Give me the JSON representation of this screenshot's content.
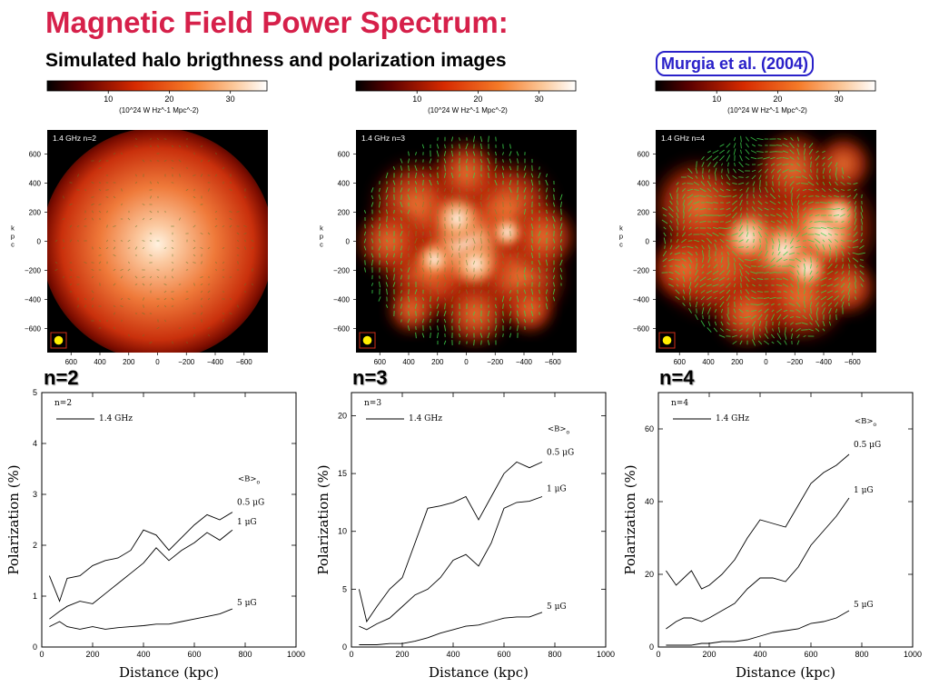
{
  "header": {
    "title": "Magnetic Field Power Spectrum:",
    "subtitle": "Simulated halo brigthness and polarization images",
    "citation": "Murgia et al. (2004)"
  },
  "colors": {
    "title": "#d6204a",
    "citation": "#2a21c9",
    "vectors": "#3bd04a"
  },
  "colorbar": {
    "ticks": [
      "10",
      "20",
      "30"
    ],
    "tick_values": [
      10,
      20,
      30
    ],
    "range": [
      0,
      36
    ],
    "unit": "(10^24 W Hz^-1 Mpc^-2)"
  },
  "images": [
    {
      "caption": "1.4 GHz   n=2",
      "label": "n=2"
    },
    {
      "caption": "1.4 GHz   n=3",
      "label": "n=3"
    },
    {
      "caption": "1.4 GHz   n=4",
      "label": "n=4"
    }
  ],
  "image_axes": {
    "ylabel": "k p c",
    "y_ticks": [
      "600",
      "400",
      "200",
      "0",
      "−200",
      "−400",
      "−600"
    ],
    "y_values": [
      600,
      400,
      200,
      0,
      -200,
      -400,
      -600
    ],
    "x_ticks": [
      "600",
      "400",
      "200",
      "0",
      "−200",
      "−400",
      "−600"
    ],
    "x_values": [
      600,
      400,
      200,
      0,
      -200,
      -400,
      -600
    ],
    "range": [
      -750,
      750
    ]
  },
  "chart_data": [
    {
      "type": "line",
      "panel": "n=2",
      "legend": "1.4 GHz",
      "legend_header": "<B>",
      "xlabel": "Distance (kpc)",
      "ylabel": "Polarization (%)",
      "xlim": [
        0,
        1000
      ],
      "ylim": [
        0,
        5
      ],
      "x_ticks": [
        0,
        200,
        400,
        600,
        800,
        1000
      ],
      "y_ticks": [
        0,
        1,
        2,
        3,
        4,
        5
      ],
      "series": [
        {
          "name": "0.5 μG",
          "x": [
            30,
            70,
            100,
            150,
            200,
            250,
            300,
            350,
            400,
            450,
            500,
            550,
            600,
            650,
            700,
            750
          ],
          "values": [
            1.4,
            0.9,
            1.35,
            1.4,
            1.6,
            1.7,
            1.75,
            1.9,
            2.3,
            2.2,
            1.9,
            2.15,
            2.4,
            2.6,
            2.5,
            2.65
          ]
        },
        {
          "name": "1 μG",
          "x": [
            30,
            70,
            100,
            150,
            200,
            250,
            300,
            350,
            400,
            450,
            500,
            550,
            600,
            650,
            700,
            750
          ],
          "values": [
            0.55,
            0.7,
            0.8,
            0.9,
            0.85,
            1.05,
            1.25,
            1.45,
            1.65,
            1.95,
            1.7,
            1.9,
            2.05,
            2.25,
            2.1,
            2.3
          ]
        },
        {
          "name": "5 μG",
          "x": [
            30,
            70,
            100,
            150,
            200,
            250,
            300,
            350,
            400,
            450,
            500,
            550,
            600,
            650,
            700,
            750
          ],
          "values": [
            0.4,
            0.5,
            0.4,
            0.35,
            0.4,
            0.35,
            0.38,
            0.4,
            0.42,
            0.45,
            0.45,
            0.5,
            0.55,
            0.6,
            0.65,
            0.75
          ]
        }
      ]
    },
    {
      "type": "line",
      "panel": "n=3",
      "legend": "1.4 GHz",
      "legend_header": "<B>",
      "xlabel": "Distance (kpc)",
      "ylabel": "Polarization (%)",
      "xlim": [
        0,
        1000
      ],
      "ylim": [
        0,
        22
      ],
      "x_ticks": [
        0,
        200,
        400,
        600,
        800,
        1000
      ],
      "y_ticks": [
        0,
        5,
        10,
        15,
        20
      ],
      "series": [
        {
          "name": "0.5 μG",
          "x": [
            30,
            60,
            100,
            150,
            200,
            250,
            300,
            350,
            400,
            450,
            500,
            550,
            600,
            650,
            700,
            750
          ],
          "values": [
            5,
            2.2,
            3.5,
            5,
            6,
            9,
            12,
            12.2,
            12.5,
            13,
            11,
            13,
            15,
            16,
            15.5,
            16
          ]
        },
        {
          "name": "1 μG",
          "x": [
            30,
            60,
            100,
            150,
            200,
            250,
            300,
            350,
            400,
            450,
            500,
            550,
            600,
            650,
            700,
            750
          ],
          "values": [
            1.8,
            1.5,
            2,
            2.5,
            3.5,
            4.5,
            5,
            6,
            7.5,
            8,
            7,
            9,
            12,
            12.5,
            12.6,
            13
          ]
        },
        {
          "name": "5 μG",
          "x": [
            30,
            60,
            100,
            150,
            200,
            250,
            300,
            350,
            400,
            450,
            500,
            550,
            600,
            650,
            700,
            750
          ],
          "values": [
            0.2,
            0.2,
            0.2,
            0.3,
            0.3,
            0.5,
            0.8,
            1.2,
            1.5,
            1.8,
            1.9,
            2.2,
            2.5,
            2.6,
            2.6,
            3
          ]
        }
      ]
    },
    {
      "type": "line",
      "panel": "n=4",
      "legend": "1.4 GHz",
      "legend_header": "<B>",
      "xlabel": "Distance (kpc)",
      "ylabel": "Polarization (%)",
      "xlim": [
        0,
        1000
      ],
      "ylim": [
        0,
        70
      ],
      "x_ticks": [
        0,
        200,
        400,
        600,
        800,
        1000
      ],
      "y_ticks": [
        0,
        20,
        40,
        60
      ],
      "series": [
        {
          "name": "0.5 μG",
          "x": [
            30,
            70,
            100,
            130,
            170,
            200,
            250,
            300,
            350,
            400,
            450,
            500,
            550,
            600,
            650,
            700,
            750
          ],
          "values": [
            21,
            17,
            19,
            21,
            16,
            17,
            20,
            24,
            30,
            35,
            34,
            33,
            39,
            45,
            48,
            50,
            53
          ]
        },
        {
          "name": "1 μG",
          "x": [
            30,
            70,
            100,
            130,
            170,
            200,
            250,
            300,
            350,
            400,
            450,
            500,
            550,
            600,
            650,
            700,
            750
          ],
          "values": [
            5,
            7,
            8,
            8,
            7,
            8,
            10,
            12,
            16,
            19,
            19,
            18,
            22,
            28,
            32,
            36,
            41
          ]
        },
        {
          "name": "5 μG",
          "x": [
            30,
            70,
            100,
            130,
            170,
            200,
            250,
            300,
            350,
            400,
            450,
            500,
            550,
            600,
            650,
            700,
            750
          ],
          "values": [
            0.5,
            0.5,
            0.5,
            0.5,
            1,
            1,
            1.5,
            1.5,
            2,
            3,
            4,
            4.5,
            5,
            6.5,
            7,
            8,
            10
          ]
        }
      ]
    }
  ]
}
